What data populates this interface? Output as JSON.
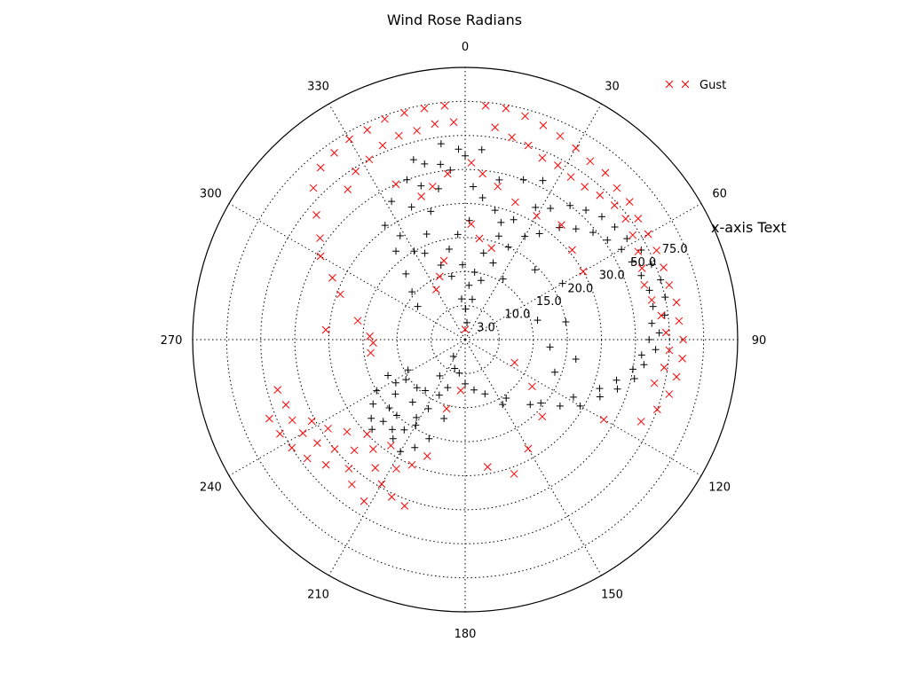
{
  "chart_data": {
    "type": "scatter",
    "projection": "polar",
    "title": "Wind Rose Radians",
    "xlabel": "x-axis Text",
    "theta_zero": "north",
    "theta_direction": "clockwise",
    "theta_ticks": [
      "0",
      "30",
      "60",
      "90",
      "120",
      "150",
      "180",
      "210",
      "240",
      "270",
      "300",
      "330"
    ],
    "r_ticks": [
      {
        "label": "3.0",
        "level": 1
      },
      {
        "label": "10.0",
        "level": 2
      },
      {
        "label": "15.0",
        "level": 3
      },
      {
        "label": "20.0",
        "level": 4
      },
      {
        "label": "30.0",
        "level": 5
      },
      {
        "label": "50.0",
        "level": 6
      },
      {
        "label": "75.0",
        "level": 7
      }
    ],
    "r_levels_total": 8,
    "r_label_angle": 67.5,
    "grid": true,
    "legend_position": "top-right",
    "series": [
      {
        "marker": "+",
        "color": "#000000",
        "points": [
          {
            "theta": 10,
            "r": 1.2
          },
          {
            "theta": 15,
            "r": 1.8
          },
          {
            "theta": 20,
            "r": 2.4
          },
          {
            "theta": 25,
            "r": 3.0
          },
          {
            "theta": 30,
            "r": 3.5
          },
          {
            "theta": 35,
            "r": 3.8
          },
          {
            "theta": 40,
            "r": 4.3
          },
          {
            "theta": 45,
            "r": 4.6
          },
          {
            "theta": 50,
            "r": 4.9
          },
          {
            "theta": 55,
            "r": 5.1
          },
          {
            "theta": 60,
            "r": 5.3
          },
          {
            "theta": 65,
            "r": 5.4
          },
          {
            "theta": 70,
            "r": 5.5
          },
          {
            "theta": 75,
            "r": 5.6
          },
          {
            "theta": 80,
            "r": 5.6
          },
          {
            "theta": 85,
            "r": 5.5
          },
          {
            "theta": 90,
            "r": 5.4
          },
          {
            "theta": 95,
            "r": 5.2
          },
          {
            "theta": 100,
            "r": 5.0
          },
          {
            "theta": 105,
            "r": 4.6
          },
          {
            "theta": 110,
            "r": 4.2
          },
          {
            "theta": 118,
            "r": 3.6
          },
          {
            "theta": 130,
            "r": 2.9
          },
          {
            "theta": 150,
            "r": 2.2
          },
          {
            "theta": 170,
            "r": 1.5
          },
          {
            "theta": 190,
            "r": 1.0
          },
          {
            "theta": 8,
            "r": 2.0
          },
          {
            "theta": 12,
            "r": 2.6
          },
          {
            "theta": 18,
            "r": 3.2
          },
          {
            "theta": 22,
            "r": 3.8
          },
          {
            "theta": 28,
            "r": 4.4
          },
          {
            "theta": 33,
            "r": 4.6
          },
          {
            "theta": 38,
            "r": 5.0
          },
          {
            "theta": 43,
            "r": 5.2
          },
          {
            "theta": 48,
            "r": 5.4
          },
          {
            "theta": 53,
            "r": 5.5
          },
          {
            "theta": 58,
            "r": 5.6
          },
          {
            "theta": 63,
            "r": 5.8
          },
          {
            "theta": 68,
            "r": 5.9
          },
          {
            "theta": 73,
            "r": 6.0
          },
          {
            "theta": 78,
            "r": 6.0
          },
          {
            "theta": 83,
            "r": 5.9
          },
          {
            "theta": 88,
            "r": 5.7
          },
          {
            "theta": 93,
            "r": 5.6
          },
          {
            "theta": 98,
            "r": 5.3
          },
          {
            "theta": 103,
            "r": 5.1
          },
          {
            "theta": 108,
            "r": 4.7
          },
          {
            "theta": 113,
            "r": 4.3
          },
          {
            "theta": 120,
            "r": 3.9
          },
          {
            "theta": 125,
            "r": 3.4
          },
          {
            "theta": 135,
            "r": 2.7
          },
          {
            "theta": 145,
            "r": 2.1
          },
          {
            "theta": 160,
            "r": 1.7
          },
          {
            "theta": 180,
            "r": 1.3
          },
          {
            "theta": 200,
            "r": 0.9
          },
          {
            "theta": 215,
            "r": 0.6
          },
          {
            "theta": 340,
            "r": 3.3
          },
          {
            "theta": 345,
            "r": 3.9
          },
          {
            "theta": 350,
            "r": 4.5
          },
          {
            "theta": 355,
            "r": 5.0
          },
          {
            "theta": 0,
            "r": 5.4
          },
          {
            "theta": 5,
            "r": 5.6
          },
          {
            "theta": 335,
            "r": 2.8
          },
          {
            "theta": 328,
            "r": 3.6
          },
          {
            "theta": 322,
            "r": 3.3
          },
          {
            "theta": 318,
            "r": 2.6
          },
          {
            "theta": 312,
            "r": 2.1
          },
          {
            "theta": 305,
            "r": 1.7
          },
          {
            "theta": 338,
            "r": 4.2
          },
          {
            "theta": 344,
            "r": 4.7
          },
          {
            "theta": 352,
            "r": 5.2
          },
          {
            "theta": 358,
            "r": 5.6
          },
          {
            "theta": 3,
            "r": 4.5
          },
          {
            "theta": 7,
            "r": 4.2
          },
          {
            "theta": 13,
            "r": 3.9
          },
          {
            "theta": 17,
            "r": 3.6
          },
          {
            "theta": 2,
            "r": 3.5
          },
          {
            "theta": 356,
            "r": 3.1
          },
          {
            "theta": 350,
            "r": 2.7
          },
          {
            "theta": 358,
            "r": 2.2
          },
          {
            "theta": 4,
            "r": 1.6
          },
          {
            "theta": 1,
            "r": 0.9
          },
          {
            "theta": 6,
            "r": 0.5
          },
          {
            "theta": 355,
            "r": 1.2
          },
          {
            "theta": 348,
            "r": 1.9
          },
          {
            "theta": 342,
            "r": 2.3
          },
          {
            "theta": 330,
            "r": 3.0
          },
          {
            "theta": 325,
            "r": 4.1
          },
          {
            "theta": 332,
            "r": 4.6
          },
          {
            "theta": 340,
            "r": 5.0
          },
          {
            "theta": 347,
            "r": 5.3
          },
          {
            "theta": 353,
            "r": 5.8
          },
          {
            "theta": 215,
            "r": 1.3
          },
          {
            "theta": 218,
            "r": 1.9
          },
          {
            "theta": 220,
            "r": 2.4
          },
          {
            "theta": 222,
            "r": 3.0
          },
          {
            "theta": 225,
            "r": 3.4
          },
          {
            "theta": 228,
            "r": 3.0
          },
          {
            "theta": 232,
            "r": 2.6
          },
          {
            "theta": 236,
            "r": 2.1
          },
          {
            "theta": 212,
            "r": 2.7
          },
          {
            "theta": 208,
            "r": 2.3
          },
          {
            "theta": 205,
            "r": 1.8
          },
          {
            "theta": 200,
            "r": 1.5
          },
          {
            "theta": 230,
            "r": 3.6
          },
          {
            "theta": 235,
            "r": 3.3
          },
          {
            "theta": 240,
            "r": 3.0
          },
          {
            "theta": 245,
            "r": 2.5
          },
          {
            "theta": 225,
            "r": 2.0
          },
          {
            "theta": 219,
            "r": 3.4
          },
          {
            "theta": 214,
            "r": 3.2
          },
          {
            "theta": 210,
            "r": 2.9
          },
          {
            "theta": 238,
            "r": 2.4
          },
          {
            "theta": 242,
            "r": 1.9
          },
          {
            "theta": 226,
            "r": 3.8
          },
          {
            "theta": 216,
            "r": 3.6
          },
          {
            "theta": 195,
            "r": 2.4
          },
          {
            "theta": 200,
            "r": 3.1
          },
          {
            "theta": 205,
            "r": 3.5
          },
          {
            "theta": 210,
            "r": 3.8
          },
          {
            "theta": 32,
            "r": 2.1
          },
          {
            "theta": 45,
            "r": 2.9
          },
          {
            "theta": 60,
            "r": 3.3
          },
          {
            "theta": 80,
            "r": 3.0
          },
          {
            "theta": 95,
            "r": 2.5
          },
          {
            "theta": 110,
            "r": 2.8
          },
          {
            "theta": 75,
            "r": 2.2
          },
          {
            "theta": 100,
            "r": 3.3
          },
          {
            "theta": 12,
            "r": 4.8
          },
          {
            "theta": 20,
            "r": 5.0
          },
          {
            "theta": 26,
            "r": 5.2
          },
          {
            "theta": 344,
            "r": 5.5
          }
        ]
      },
      {
        "name": "Gust",
        "marker": "x",
        "color": "#ff0000",
        "points": [
          {
            "theta": 5,
            "r": 6.9
          },
          {
            "theta": 10,
            "r": 6.9
          },
          {
            "theta": 15,
            "r": 6.8
          },
          {
            "theta": 20,
            "r": 6.7
          },
          {
            "theta": 25,
            "r": 6.6
          },
          {
            "theta": 30,
            "r": 6.5
          },
          {
            "theta": 35,
            "r": 6.4
          },
          {
            "theta": 40,
            "r": 6.4
          },
          {
            "theta": 45,
            "r": 6.3
          },
          {
            "theta": 50,
            "r": 6.3
          },
          {
            "theta": 55,
            "r": 6.2
          },
          {
            "theta": 60,
            "r": 6.2
          },
          {
            "theta": 65,
            "r": 6.2
          },
          {
            "theta": 70,
            "r": 6.2
          },
          {
            "theta": 75,
            "r": 6.2
          },
          {
            "theta": 80,
            "r": 6.3
          },
          {
            "theta": 85,
            "r": 6.3
          },
          {
            "theta": 90,
            "r": 6.4
          },
          {
            "theta": 95,
            "r": 6.4
          },
          {
            "theta": 100,
            "r": 6.3
          },
          {
            "theta": 105,
            "r": 6.2
          },
          {
            "theta": 110,
            "r": 6.0
          },
          {
            "theta": 115,
            "r": 5.7
          },
          {
            "theta": 120,
            "r": 4.7
          },
          {
            "theta": 355,
            "r": 6.9
          },
          {
            "theta": 350,
            "r": 6.9
          },
          {
            "theta": 345,
            "r": 6.9
          },
          {
            "theta": 340,
            "r": 6.9
          },
          {
            "theta": 335,
            "r": 6.8
          },
          {
            "theta": 330,
            "r": 6.8
          },
          {
            "theta": 325,
            "r": 6.7
          },
          {
            "theta": 320,
            "r": 6.6
          },
          {
            "theta": 315,
            "r": 6.3
          },
          {
            "theta": 310,
            "r": 5.7
          },
          {
            "theta": 305,
            "r": 5.2
          },
          {
            "theta": 300,
            "r": 4.9
          },
          {
            "theta": 295,
            "r": 4.3
          },
          {
            "theta": 290,
            "r": 3.9
          },
          {
            "theta": 280,
            "r": 3.2
          },
          {
            "theta": 272,
            "r": 2.8
          },
          {
            "theta": 8,
            "r": 6.3
          },
          {
            "theta": 13,
            "r": 6.1
          },
          {
            "theta": 18,
            "r": 6.0
          },
          {
            "theta": 23,
            "r": 5.8
          },
          {
            "theta": 28,
            "r": 5.8
          },
          {
            "theta": 33,
            "r": 5.7
          },
          {
            "theta": 38,
            "r": 5.7
          },
          {
            "theta": 43,
            "r": 5.8
          },
          {
            "theta": 48,
            "r": 5.9
          },
          {
            "theta": 53,
            "r": 5.9
          },
          {
            "theta": 58,
            "r": 5.8
          },
          {
            "theta": 63,
            "r": 5.7
          },
          {
            "theta": 68,
            "r": 5.6
          },
          {
            "theta": 73,
            "r": 5.5
          },
          {
            "theta": 78,
            "r": 5.6
          },
          {
            "theta": 83,
            "r": 5.8
          },
          {
            "theta": 88,
            "r": 5.9
          },
          {
            "theta": 93,
            "r": 6.0
          },
          {
            "theta": 98,
            "r": 5.9
          },
          {
            "theta": 103,
            "r": 5.7
          },
          {
            "theta": 357,
            "r": 6.4
          },
          {
            "theta": 352,
            "r": 6.4
          },
          {
            "theta": 347,
            "r": 6.3
          },
          {
            "theta": 342,
            "r": 6.3
          },
          {
            "theta": 337,
            "r": 6.2
          },
          {
            "theta": 332,
            "r": 6.0
          },
          {
            "theta": 327,
            "r": 5.9
          },
          {
            "theta": 322,
            "r": 5.6
          },
          {
            "theta": 2,
            "r": 5.2
          },
          {
            "theta": 6,
            "r": 4.9
          },
          {
            "theta": 12,
            "r": 4.6
          },
          {
            "theta": 20,
            "r": 4.3
          },
          {
            "theta": 30,
            "r": 4.2
          },
          {
            "theta": 40,
            "r": 4.4
          },
          {
            "theta": 50,
            "r": 4.1
          },
          {
            "theta": 60,
            "r": 4.0
          },
          {
            "theta": 354,
            "r": 4.9
          },
          {
            "theta": 348,
            "r": 4.6
          },
          {
            "theta": 343,
            "r": 4.4
          },
          {
            "theta": 336,
            "r": 5.0
          },
          {
            "theta": 3,
            "r": 3.4
          },
          {
            "theta": 8,
            "r": 3.0
          },
          {
            "theta": 16,
            "r": 2.8
          },
          {
            "theta": 345,
            "r": 2.4
          },
          {
            "theta": 338,
            "r": 2.0
          },
          {
            "theta": 330,
            "r": 1.7
          },
          {
            "theta": 0,
            "r": 0.3
          },
          {
            "theta": 115,
            "r": 1.6
          },
          {
            "theta": 125,
            "r": 2.4
          },
          {
            "theta": 135,
            "r": 3.2
          },
          {
            "theta": 150,
            "r": 3.7
          },
          {
            "theta": 160,
            "r": 4.2
          },
          {
            "theta": 170,
            "r": 3.8
          },
          {
            "theta": 185,
            "r": 1.5
          },
          {
            "theta": 195,
            "r": 2.1
          },
          {
            "theta": 220,
            "r": 4.2
          },
          {
            "theta": 225,
            "r": 4.6
          },
          {
            "theta": 230,
            "r": 5.0
          },
          {
            "theta": 235,
            "r": 5.3
          },
          {
            "theta": 240,
            "r": 5.5
          },
          {
            "theta": 245,
            "r": 5.6
          },
          {
            "theta": 250,
            "r": 5.6
          },
          {
            "theta": 255,
            "r": 5.7
          },
          {
            "theta": 215,
            "r": 4.6
          },
          {
            "theta": 210,
            "r": 4.9
          },
          {
            "theta": 205,
            "r": 5.1
          },
          {
            "theta": 200,
            "r": 5.2
          },
          {
            "theta": 222,
            "r": 5.1
          },
          {
            "theta": 228,
            "r": 5.5
          },
          {
            "theta": 233,
            "r": 5.8
          },
          {
            "theta": 238,
            "r": 6.0
          },
          {
            "theta": 243,
            "r": 6.1
          },
          {
            "theta": 248,
            "r": 6.2
          },
          {
            "theta": 218,
            "r": 5.4
          },
          {
            "theta": 212,
            "r": 5.6
          },
          {
            "theta": 226,
            "r": 4.0
          },
          {
            "theta": 232,
            "r": 4.4
          },
          {
            "theta": 237,
            "r": 4.8
          },
          {
            "theta": 242,
            "r": 5.1
          },
          {
            "theta": 208,
            "r": 4.3
          },
          {
            "theta": 203,
            "r": 4.0
          },
          {
            "theta": 198,
            "r": 3.6
          },
          {
            "theta": 215,
            "r": 3.8
          },
          {
            "theta": 262,
            "r": 2.8
          },
          {
            "theta": 268,
            "r": 2.7
          },
          {
            "theta": 274,
            "r": 4.1
          }
        ]
      }
    ]
  }
}
